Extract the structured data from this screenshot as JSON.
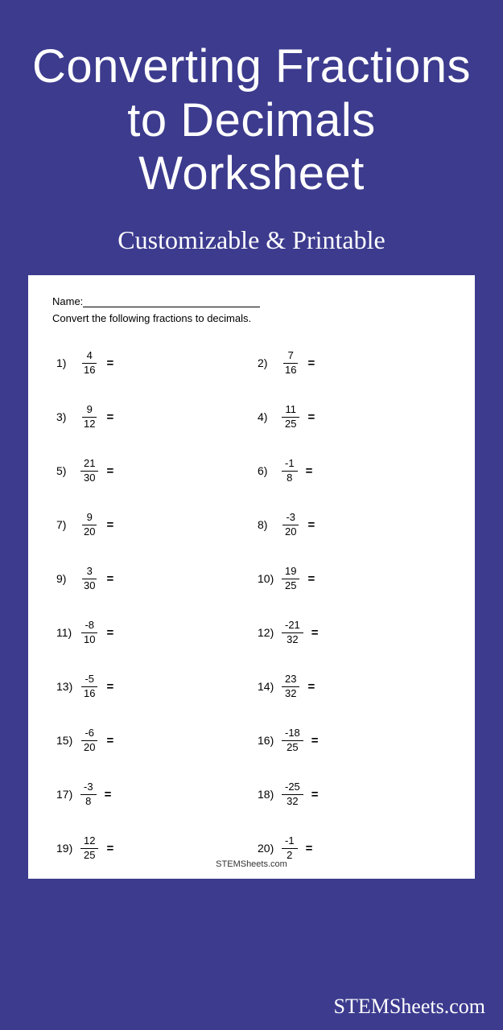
{
  "colors": {
    "background": "#3c3b8e",
    "text": "#ffffff",
    "paper": "#ffffff",
    "paper_text": "#000000"
  },
  "title": "Converting Fractions to Decimals Worksheet",
  "subtitle": "Customizable & Printable",
  "worksheet": {
    "name_label": "Name:",
    "instructions": "Convert the following fractions to decimals.",
    "footer": "STEMSheets.com",
    "problems": [
      {
        "n": "1)",
        "num": "4",
        "den": "16"
      },
      {
        "n": "2)",
        "num": "7",
        "den": "16"
      },
      {
        "n": "3)",
        "num": "9",
        "den": "12"
      },
      {
        "n": "4)",
        "num": "11",
        "den": "25"
      },
      {
        "n": "5)",
        "num": "21",
        "den": "30"
      },
      {
        "n": "6)",
        "num": "-1",
        "den": "8"
      },
      {
        "n": "7)",
        "num": "9",
        "den": "20"
      },
      {
        "n": "8)",
        "num": "-3",
        "den": "20"
      },
      {
        "n": "9)",
        "num": "3",
        "den": "30"
      },
      {
        "n": "10)",
        "num": "19",
        "den": "25"
      },
      {
        "n": "11)",
        "num": "-8",
        "den": "10"
      },
      {
        "n": "12)",
        "num": "-21",
        "den": "32"
      },
      {
        "n": "13)",
        "num": "-5",
        "den": "16"
      },
      {
        "n": "14)",
        "num": "23",
        "den": "32"
      },
      {
        "n": "15)",
        "num": "-6",
        "den": "20"
      },
      {
        "n": "16)",
        "num": "-18",
        "den": "25"
      },
      {
        "n": "17)",
        "num": "-3",
        "den": "8"
      },
      {
        "n": "18)",
        "num": "-25",
        "den": "32"
      },
      {
        "n": "19)",
        "num": "12",
        "den": "25"
      },
      {
        "n": "20)",
        "num": "-1",
        "den": "2"
      }
    ]
  },
  "site_brand": "STEMSheets.com",
  "equals": "="
}
